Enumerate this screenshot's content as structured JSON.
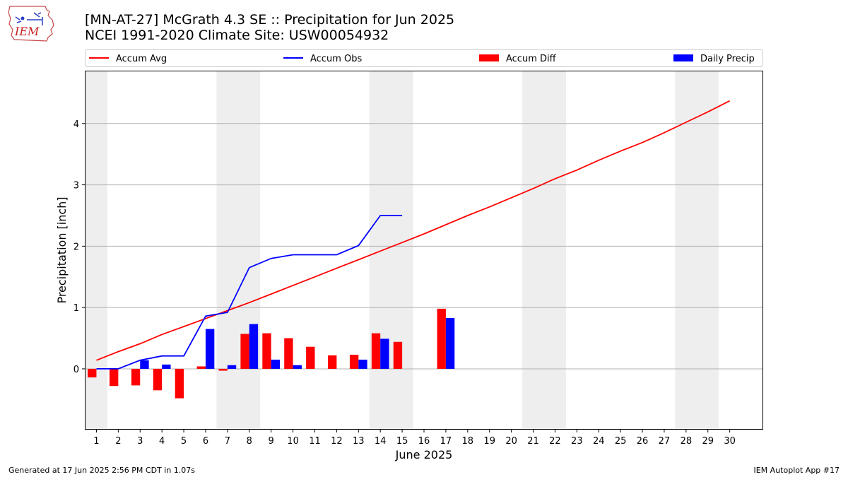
{
  "header": {
    "logo_text": "IEM",
    "title_line1": "[MN-AT-27] McGrath 4.3 SE :: Precipitation for Jun 2025",
    "title_line2": "NCEI 1991-2020 Climate Site: USW00054932"
  },
  "footer": {
    "generated": "Generated at 17 Jun 2025 2:56 PM CDT in 1.07s",
    "app": "IEM Autoplot App #17"
  },
  "colors": {
    "accum_avg": "#ff0000",
    "accum_obs": "#0000ff",
    "accum_diff": "#ff0000",
    "daily_precip": "#0000ff",
    "weekend_shade": "#eeeeee"
  },
  "chart_data": {
    "type": "bar",
    "xlabel": "June 2025",
    "ylabel": "Precipitation [inch]",
    "xlim": [
      0.5,
      31.5
    ],
    "ylim": [
      -0.98,
      4.85
    ],
    "yticks": [
      0,
      1,
      2,
      3,
      4
    ],
    "grid": "horizontal",
    "legend_position": "top",
    "days": [
      1,
      2,
      3,
      4,
      5,
      6,
      7,
      8,
      9,
      10,
      11,
      12,
      13,
      14,
      15,
      16,
      17,
      18,
      19,
      20,
      21,
      22,
      23,
      24,
      25,
      26,
      27,
      28,
      29,
      30
    ],
    "weekend_days": [
      1,
      7,
      8,
      14,
      15,
      21,
      22,
      28,
      29
    ],
    "series": [
      {
        "name": "Accum Avg",
        "kind": "line",
        "values": [
          0.14,
          0.28,
          0.41,
          0.56,
          0.69,
          0.82,
          0.95,
          1.08,
          1.22,
          1.36,
          1.5,
          1.64,
          1.78,
          1.92,
          2.06,
          2.2,
          2.35,
          2.5,
          2.64,
          2.79,
          2.94,
          3.1,
          3.24,
          3.4,
          3.55,
          3.69,
          3.85,
          4.02,
          4.19,
          4.37
        ]
      },
      {
        "name": "Accum Obs",
        "kind": "line",
        "values": [
          0.0,
          0.0,
          0.14,
          0.21,
          0.21,
          0.86,
          0.92,
          1.65,
          1.8,
          1.86,
          1.86,
          1.86,
          2.01,
          2.5,
          2.5,
          null,
          null,
          null,
          null,
          null,
          null,
          null,
          null,
          null,
          null,
          null,
          null,
          null,
          null,
          null
        ]
      },
      {
        "name": "Accum Diff",
        "kind": "bar",
        "values": [
          -0.14,
          -0.28,
          -0.27,
          -0.35,
          -0.48,
          0.04,
          -0.03,
          0.57,
          0.58,
          0.5,
          0.36,
          0.22,
          0.23,
          0.58,
          0.44,
          null,
          0.98,
          null,
          null,
          null,
          null,
          null,
          null,
          null,
          null,
          null,
          null,
          null,
          null,
          null
        ]
      },
      {
        "name": "Daily Precip",
        "kind": "bar",
        "values": [
          0.0,
          0.0,
          0.14,
          0.07,
          0.0,
          0.65,
          0.06,
          0.73,
          0.15,
          0.06,
          0.0,
          0.0,
          0.15,
          0.49,
          0.0,
          null,
          0.83,
          null,
          null,
          null,
          null,
          null,
          null,
          null,
          null,
          null,
          null,
          null,
          null,
          null
        ]
      }
    ]
  }
}
